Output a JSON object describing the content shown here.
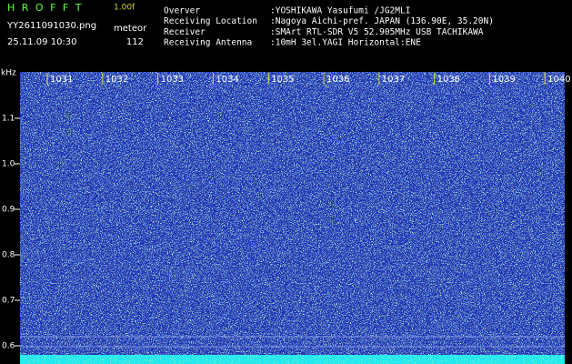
{
  "header": {
    "app_name": "H R O F F T",
    "version": "1.00f",
    "file_name": "YY2611091030.png",
    "mode": "meteor",
    "datetime": "25.11.09 10:30",
    "count": "112"
  },
  "info": [
    {
      "label": "Overver",
      "value": ":YOSHIKAWA Yasufumi /JG2MLI"
    },
    {
      "label": "Receiving Location",
      "value": ":Nagoya Aichi-pref. JAPAN (136.90E, 35.20N)"
    },
    {
      "label": "Receiver",
      "value": ":SMArt RTL-SDR V5 52.905MHz USB TACHIKAWA"
    },
    {
      "label": "Receiving Antenna",
      "value": ":10mH 3el.YAGI Horizontal:ENE"
    }
  ],
  "spectrogram": {
    "y_unit": "kHz",
    "y_labels": [
      "1.1",
      "1.0",
      "0.9",
      "0.8",
      "0.7",
      "0.6"
    ],
    "time_labels": [
      "1031",
      "1032",
      "1033",
      "1034",
      "1035",
      "1036",
      "1037",
      "1038",
      "1039",
      "1040"
    ]
  }
}
